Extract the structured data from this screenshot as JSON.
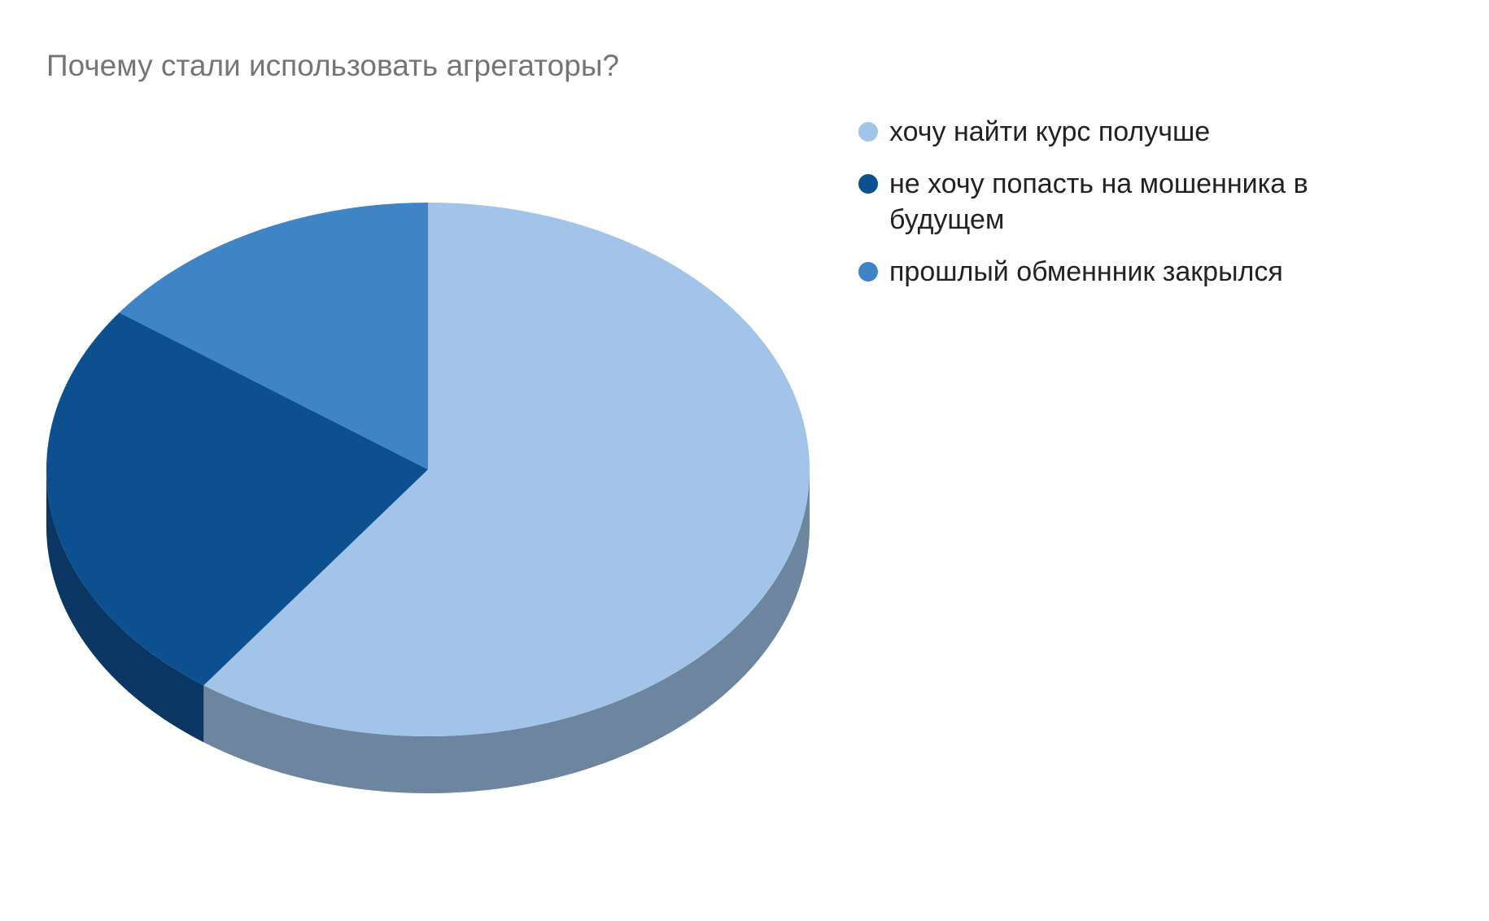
{
  "chart_data": {
    "type": "pie3d",
    "title": "Почему стали использовать агрегаторы?",
    "categories": [
      "хочу найти курс получше",
      "не хочу попасть на мошенника в будущем",
      "прошлый обменнник закрылся"
    ],
    "values": [
      60,
      25,
      15
    ],
    "colors": [
      "#a1c4e8",
      "#0d5090",
      "#3f85c5"
    ],
    "legend": "right"
  }
}
